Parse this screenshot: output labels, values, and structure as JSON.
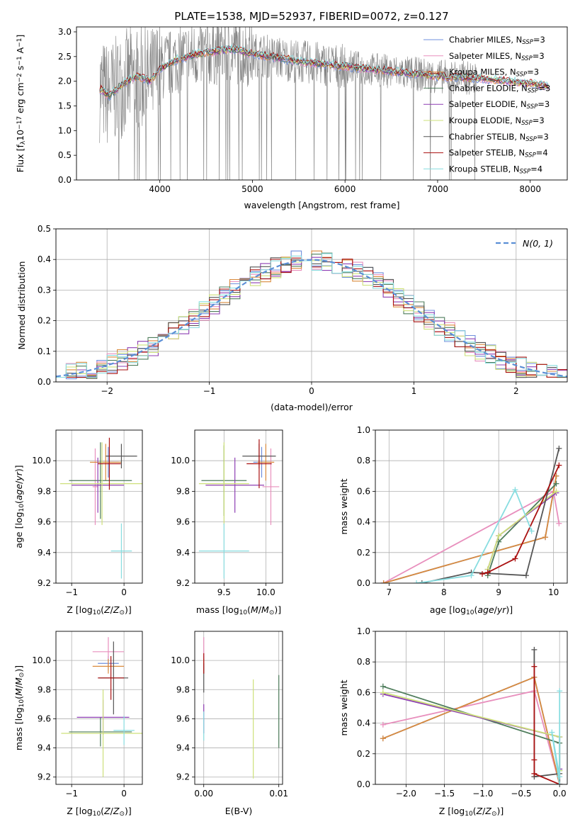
{
  "figure": {
    "title": "PLATE=1538, MJD=52937, FIBERID=0072, z=0.127"
  },
  "colors": {
    "Chabrier MILES": "#6f8fdc",
    "Salpeter MILES": "#e88fbd",
    "Kroupa MILES": "#d98a3c",
    "Chabrier ELODIE": "#4f7d5c",
    "Salpeter ELODIE": "#8e3fb3",
    "Kroupa ELODIE": "#cde07a",
    "Chabrier STELIB": "#555555",
    "Salpeter STELIB": "#aa1111",
    "Kroupa STELIB": "#88dde0",
    "data": "#808080",
    "normal": "#5b8fd6"
  },
  "chart_data": [
    {
      "type": "line",
      "id": "spectrum",
      "xlabel": "wavelength [Angstrom, rest frame]",
      "ylabel": "Flux [f_λ 10^-17 erg cm^-2 s^-1 A^-1]",
      "xlim": [
        3100,
        8400
      ],
      "ylim": [
        0,
        3.1
      ],
      "xticks": [
        "4000",
        "5000",
        "6000",
        "7000",
        "8000"
      ],
      "yticks": [
        "0.0",
        "0.5",
        "1.0",
        "1.5",
        "2.0",
        "2.5",
        "3.0"
      ],
      "legend_position": "right",
      "legend": [
        "Chabrier MILES, N_SSP=3",
        "Salpeter MILES, N_SSP=3",
        "Kroupa MILES, N_SSP=3",
        "Chabrier ELODIE, N_SSP=3",
        "Salpeter ELODIE, N_SSP=3",
        "Kroupa ELODIE, N_SSP=3",
        "Chabrier STELIB, N_SSP=3",
        "Salpeter STELIB, N_SSP=4",
        "Kroupa STELIB, N_SSP=4"
      ],
      "model_trend": {
        "x": [
          3350,
          3450,
          3600,
          3750,
          3900,
          4000,
          4200,
          4400,
          4600,
          4800,
          5000,
          5200,
          5500,
          6000,
          6500,
          7000,
          7500,
          8000,
          8200
        ],
        "y": [
          1.85,
          1.7,
          1.95,
          2.1,
          2.0,
          2.25,
          2.45,
          2.55,
          2.6,
          2.65,
          2.55,
          2.5,
          2.4,
          2.3,
          2.2,
          2.1,
          2.05,
          1.95,
          1.9
        ]
      },
      "grid": false
    },
    {
      "type": "histogram",
      "id": "residuals",
      "xlabel": "(data-model)/error",
      "ylabel": "Normed distribution",
      "xlim": [
        -2.5,
        2.5
      ],
      "ylim": [
        0,
        0.5
      ],
      "xticks": [
        "−2",
        "−1",
        "0",
        "1",
        "2"
      ],
      "yticks": [
        "0.0",
        "0.1",
        "0.2",
        "0.3",
        "0.4",
        "0.5"
      ],
      "normal_label": "N(0, 1)",
      "bin_width": 0.1,
      "bins_start": -2.5,
      "grid": true
    },
    {
      "type": "scatter",
      "id": "age-vs-Z",
      "xlabel": "Z [log10(Z/Z⊙)]",
      "ylabel": "age [log10(age/yr)]",
      "xlim": [
        -1.3,
        0.35
      ],
      "ylim": [
        9.2,
        10.2
      ],
      "xticks": [
        "−1",
        "0"
      ],
      "yticks": [
        "9.2",
        "9.4",
        "9.6",
        "9.8",
        "10.0"
      ],
      "grid": true,
      "points": [
        {
          "model": "Chabrier MILES",
          "x": -0.3,
          "y": 9.99,
          "xerr": 0.2,
          "yerr": 0.1
        },
        {
          "model": "Salpeter MILES",
          "x": -0.55,
          "y": 9.83,
          "xerr": 0.05,
          "yerr": 0.25
        },
        {
          "model": "Kroupa MILES",
          "x": -0.35,
          "y": 9.99,
          "xerr": 0.3,
          "yerr": 0.12
        },
        {
          "model": "Chabrier ELODIE",
          "x": -0.45,
          "y": 9.87,
          "xerr": 0.6,
          "yerr": 0.25
        },
        {
          "model": "Salpeter ELODIE",
          "x": -0.5,
          "y": 9.84,
          "xerr": 0.5,
          "yerr": 0.18
        },
        {
          "model": "Kroupa ELODIE",
          "x": -0.42,
          "y": 9.85,
          "xerr": 0.8,
          "yerr": 0.27
        },
        {
          "model": "Chabrier STELIB",
          "x": -0.05,
          "y": 10.03,
          "xerr": 0.3,
          "yerr": 0.08
        },
        {
          "model": "Salpeter STELIB",
          "x": -0.28,
          "y": 9.98,
          "xerr": 0.22,
          "yerr": 0.17
        },
        {
          "model": "Kroupa STELIB",
          "x": -0.05,
          "y": 9.41,
          "xerr": 0.2,
          "yerr": 0.18
        }
      ]
    },
    {
      "type": "scatter",
      "id": "age-vs-mass",
      "xlabel": "mass [log10(M/M⊙)]",
      "xlim": [
        9.15,
        10.2
      ],
      "ylim": [
        9.2,
        10.2
      ],
      "xticks": [
        "9.5",
        "10.0"
      ],
      "yticks": [
        "9.2",
        "9.4",
        "9.6",
        "9.8",
        "10.0"
      ],
      "grid": true,
      "points": [
        {
          "model": "Chabrier MILES",
          "x": 9.95,
          "y": 9.99,
          "xerr": 0.1,
          "yerr": 0.1
        },
        {
          "model": "Salpeter MILES",
          "x": 10.06,
          "y": 9.83,
          "xerr": 0.1,
          "yerr": 0.25
        },
        {
          "model": "Kroupa MILES",
          "x": 10.0,
          "y": 9.99,
          "xerr": 0.1,
          "yerr": 0.12
        },
        {
          "model": "Chabrier ELODIE",
          "x": 9.5,
          "y": 9.87,
          "xerr": 0.27,
          "yerr": 0.23
        },
        {
          "model": "Salpeter ELODIE",
          "x": 9.63,
          "y": 9.84,
          "xerr": 0.35,
          "yerr": 0.18
        },
        {
          "model": "Kroupa ELODIE",
          "x": 9.5,
          "y": 9.85,
          "xerr": 0.3,
          "yerr": 0.27
        },
        {
          "model": "Chabrier STELIB",
          "x": 9.92,
          "y": 10.03,
          "xerr": 0.2,
          "yerr": 0.08
        },
        {
          "model": "Salpeter STELIB",
          "x": 9.92,
          "y": 9.98,
          "xerr": 0.15,
          "yerr": 0.16
        },
        {
          "model": "Kroupa STELIB",
          "x": 9.5,
          "y": 9.41,
          "xerr": 0.3,
          "yerr": 0.18
        }
      ]
    },
    {
      "type": "line",
      "id": "weight-vs-age",
      "xlabel": "age [log10(age/yr)]",
      "ylabel": "mass weight",
      "xlim": [
        6.75,
        10.25
      ],
      "ylim": [
        0,
        1.0
      ],
      "xticks": [
        "7",
        "8",
        "9",
        "10"
      ],
      "yticks": [
        "0.0",
        "0.2",
        "0.4",
        "0.6",
        "0.8",
        "1.0"
      ],
      "grid": true,
      "series": [
        {
          "model": "Chabrier MILES",
          "x": [
            6.9,
            9.85,
            10.05
          ],
          "y": [
            0.0,
            0.3,
            0.7
          ]
        },
        {
          "model": "Salpeter MILES",
          "x": [
            6.9,
            10.0,
            10.1
          ],
          "y": [
            0.0,
            0.6,
            0.39
          ]
        },
        {
          "model": "Kroupa MILES",
          "x": [
            6.9,
            9.85,
            10.05
          ],
          "y": [
            0.0,
            0.3,
            0.7
          ]
        },
        {
          "model": "Chabrier ELODIE",
          "x": [
            8.8,
            9.0,
            10.05
          ],
          "y": [
            0.05,
            0.27,
            0.65
          ]
        },
        {
          "model": "Salpeter ELODIE",
          "x": [
            8.8,
            9.0,
            10.05
          ],
          "y": [
            0.09,
            0.31,
            0.59
          ]
        },
        {
          "model": "Kroupa ELODIE",
          "x": [
            8.8,
            9.0,
            10.05
          ],
          "y": [
            0.09,
            0.31,
            0.6
          ]
        },
        {
          "model": "Chabrier STELIB",
          "x": [
            7.6,
            8.5,
            9.5,
            10.1
          ],
          "y": [
            0.0,
            0.07,
            0.05,
            0.88
          ]
        },
        {
          "model": "Salpeter STELIB",
          "x": [
            8.7,
            8.8,
            9.3,
            10.1
          ],
          "y": [
            0.06,
            0.07,
            0.16,
            0.77
          ]
        },
        {
          "model": "Kroupa STELIB",
          "x": [
            7.5,
            8.5,
            9.3,
            9.6
          ],
          "y": [
            0.0,
            0.05,
            0.61,
            0.34
          ]
        }
      ]
    },
    {
      "type": "scatter",
      "id": "mass-vs-Z",
      "xlabel": "Z [log10(Z/Z⊙)]",
      "ylabel": "mass [log10(M/M⊙)]",
      "xlim": [
        -1.3,
        0.35
      ],
      "ylim": [
        9.15,
        10.2
      ],
      "xticks": [
        "−1",
        "0"
      ],
      "yticks": [
        "9.2",
        "9.4",
        "9.6",
        "9.8",
        "10.0"
      ],
      "grid": true,
      "points": [
        {
          "model": "Chabrier MILES",
          "x": -0.3,
          "y": 9.98,
          "xerr": 0.2,
          "yerr": 0.05
        },
        {
          "model": "Salpeter MILES",
          "x": -0.3,
          "y": 10.06,
          "xerr": 0.3,
          "yerr": 0.1
        },
        {
          "model": "Kroupa MILES",
          "x": -0.3,
          "y": 9.96,
          "xerr": 0.3,
          "yerr": 0.05
        },
        {
          "model": "Chabrier ELODIE",
          "x": -0.45,
          "y": 9.51,
          "xerr": 0.6,
          "yerr": 0.1
        },
        {
          "model": "Salpeter ELODIE",
          "x": -0.4,
          "y": 9.61,
          "xerr": 0.5,
          "yerr": 0.12
        },
        {
          "model": "Kroupa ELODIE",
          "x": -0.4,
          "y": 9.5,
          "xerr": 0.8,
          "yerr": 0.3
        },
        {
          "model": "Chabrier STELIB",
          "x": -0.2,
          "y": 9.88,
          "xerr": 0.28,
          "yerr": 0.25
        },
        {
          "model": "Salpeter STELIB",
          "x": -0.25,
          "y": 9.88,
          "xerr": 0.25,
          "yerr": 0.15
        },
        {
          "model": "Kroupa STELIB",
          "x": 0.0,
          "y": 9.52,
          "xerr": 0.2,
          "yerr": 0.1
        }
      ]
    },
    {
      "type": "scatter",
      "id": "mass-vs-EBV",
      "xlabel": "E(B-V)",
      "xlim": [
        -0.0012,
        0.0105
      ],
      "ylim": [
        9.15,
        10.2
      ],
      "xticks": [
        "0.00",
        "0.01"
      ],
      "yticks": [
        "9.2",
        "9.4",
        "9.6",
        "9.8",
        "10.0"
      ],
      "grid": true,
      "points": [
        {
          "model": "Chabrier MILES",
          "x": 0.0,
          "y": 9.98,
          "yerr": 0.05
        },
        {
          "model": "Salpeter MILES",
          "x": 0.0,
          "y": 10.06,
          "yerr": 0.1
        },
        {
          "model": "Kroupa MILES",
          "x": 0.0,
          "y": 9.96,
          "yerr": 0.05
        },
        {
          "model": "Chabrier ELODIE",
          "x": 0.01,
          "y": 9.65,
          "yerr": 0.25
        },
        {
          "model": "Salpeter ELODIE",
          "x": 0.0,
          "y": 9.6,
          "yerr": 0.1
        },
        {
          "model": "Kroupa ELODIE",
          "x": 0.0066,
          "y": 9.53,
          "yerr": 0.34
        },
        {
          "model": "Chabrier STELIB",
          "x": 0.0,
          "y": 9.88,
          "yerr": 0.1
        },
        {
          "model": "Salpeter STELIB",
          "x": 0.0,
          "y": 9.98,
          "yerr": 0.07
        },
        {
          "model": "Kroupa STELIB",
          "x": 0.0,
          "y": 9.55,
          "yerr": 0.1
        }
      ]
    },
    {
      "type": "line",
      "id": "weight-vs-Z",
      "xlabel": "Z [log10(Z/Z⊙)]",
      "ylabel": "mass weight",
      "xlim": [
        -2.4,
        0.1
      ],
      "ylim": [
        0,
        1.0
      ],
      "xticks": [
        "−2.0",
        "−1.5",
        "−1.0",
        "−0.5",
        "0.0"
      ],
      "yticks": [
        "0.0",
        "0.2",
        "0.4",
        "0.6",
        "0.8",
        "1.0"
      ],
      "grid": true,
      "series": [
        {
          "model": "Chabrier MILES",
          "x": [
            -2.3,
            -0.33,
            0.0
          ],
          "y": [
            0.3,
            0.7,
            0.0
          ]
        },
        {
          "model": "Salpeter MILES",
          "x": [
            -2.3,
            -0.33,
            0.0
          ],
          "y": [
            0.39,
            0.61,
            0.0
          ]
        },
        {
          "model": "Kroupa MILES",
          "x": [
            -2.3,
            -0.33,
            0.0
          ],
          "y": [
            0.3,
            0.7,
            0.0
          ]
        },
        {
          "model": "Chabrier ELODIE",
          "x": [
            -2.3,
            0.0,
            0.0
          ],
          "y": [
            0.64,
            0.27,
            0.09
          ]
        },
        {
          "model": "Salpeter ELODIE",
          "x": [
            -2.3,
            0.0,
            0.0
          ],
          "y": [
            0.59,
            0.31,
            0.1
          ]
        },
        {
          "model": "Kroupa ELODIE",
          "x": [
            -2.3,
            0.0,
            0.0
          ],
          "y": [
            0.6,
            0.31,
            0.09
          ]
        },
        {
          "model": "Chabrier STELIB",
          "x": [
            -0.33,
            -0.33,
            0.0,
            0.0
          ],
          "y": [
            0.88,
            0.05,
            0.07,
            0.0
          ]
        },
        {
          "model": "Salpeter STELIB",
          "x": [
            -0.33,
            -0.33,
            -0.33,
            0.0
          ],
          "y": [
            0.77,
            0.16,
            0.07,
            0.0
          ]
        },
        {
          "model": "Kroupa STELIB",
          "x": [
            0.0,
            0.0,
            -0.1,
            0.0
          ],
          "y": [
            0.61,
            0.05,
            0.34,
            0.0
          ]
        }
      ]
    }
  ]
}
